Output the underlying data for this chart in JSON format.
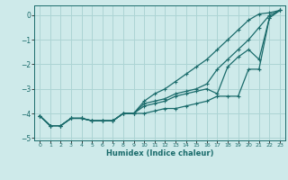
{
  "xlabel": "Humidex (Indice chaleur)",
  "background_color": "#ceeaea",
  "grid_color": "#acd4d4",
  "line_color": "#1a6b6b",
  "xlim": [
    -0.5,
    23.5
  ],
  "ylim": [
    -5.1,
    0.4
  ],
  "xticks": [
    0,
    1,
    2,
    3,
    4,
    5,
    6,
    7,
    8,
    9,
    10,
    11,
    12,
    13,
    14,
    15,
    16,
    17,
    18,
    19,
    20,
    21,
    22,
    23
  ],
  "yticks": [
    0,
    -1,
    -2,
    -3,
    -4,
    -5
  ],
  "lines": [
    {
      "x": [
        0,
        1,
        2,
        3,
        4,
        5,
        6,
        7,
        8,
        9,
        10,
        11,
        12,
        13,
        14,
        15,
        16,
        17,
        18,
        19,
        20,
        21,
        22,
        23
      ],
      "y": [
        -4.1,
        -4.5,
        -4.5,
        -4.2,
        -4.2,
        -4.3,
        -4.3,
        -4.3,
        -4.0,
        -4.0,
        -3.5,
        -3.2,
        -3.0,
        -2.7,
        -2.4,
        -2.1,
        -1.8,
        -1.4,
        -1.0,
        -0.6,
        -0.2,
        0.05,
        0.1,
        0.2
      ]
    },
    {
      "x": [
        0,
        1,
        2,
        3,
        4,
        5,
        6,
        7,
        8,
        9,
        10,
        11,
        12,
        13,
        14,
        15,
        16,
        17,
        18,
        19,
        20,
        21,
        22,
        23
      ],
      "y": [
        -4.1,
        -4.5,
        -4.5,
        -4.2,
        -4.2,
        -4.3,
        -4.3,
        -4.3,
        -4.0,
        -4.0,
        -3.6,
        -3.5,
        -3.4,
        -3.2,
        -3.1,
        -3.0,
        -2.8,
        -2.2,
        -1.8,
        -1.4,
        -1.0,
        -0.5,
        0.0,
        0.2
      ]
    },
    {
      "x": [
        0,
        1,
        2,
        3,
        4,
        5,
        6,
        7,
        8,
        9,
        10,
        11,
        12,
        13,
        14,
        15,
        16,
        17,
        18,
        19,
        20,
        21,
        22,
        23
      ],
      "y": [
        -4.1,
        -4.5,
        -4.5,
        -4.2,
        -4.2,
        -4.3,
        -4.3,
        -4.3,
        -4.0,
        -4.0,
        -3.7,
        -3.6,
        -3.5,
        -3.3,
        -3.2,
        -3.1,
        -3.0,
        -3.2,
        -2.1,
        -1.7,
        -1.4,
        -1.8,
        -0.1,
        0.2
      ]
    },
    {
      "x": [
        0,
        1,
        2,
        3,
        4,
        5,
        6,
        7,
        8,
        9,
        10,
        11,
        12,
        13,
        14,
        15,
        16,
        17,
        18,
        19,
        20,
        21,
        22,
        23
      ],
      "y": [
        -4.1,
        -4.5,
        -4.5,
        -4.2,
        -4.2,
        -4.3,
        -4.3,
        -4.3,
        -4.0,
        -4.0,
        -4.0,
        -3.9,
        -3.8,
        -3.8,
        -3.7,
        -3.6,
        -3.5,
        -3.3,
        -3.3,
        -3.3,
        -2.2,
        -2.2,
        -0.1,
        0.2
      ]
    }
  ]
}
